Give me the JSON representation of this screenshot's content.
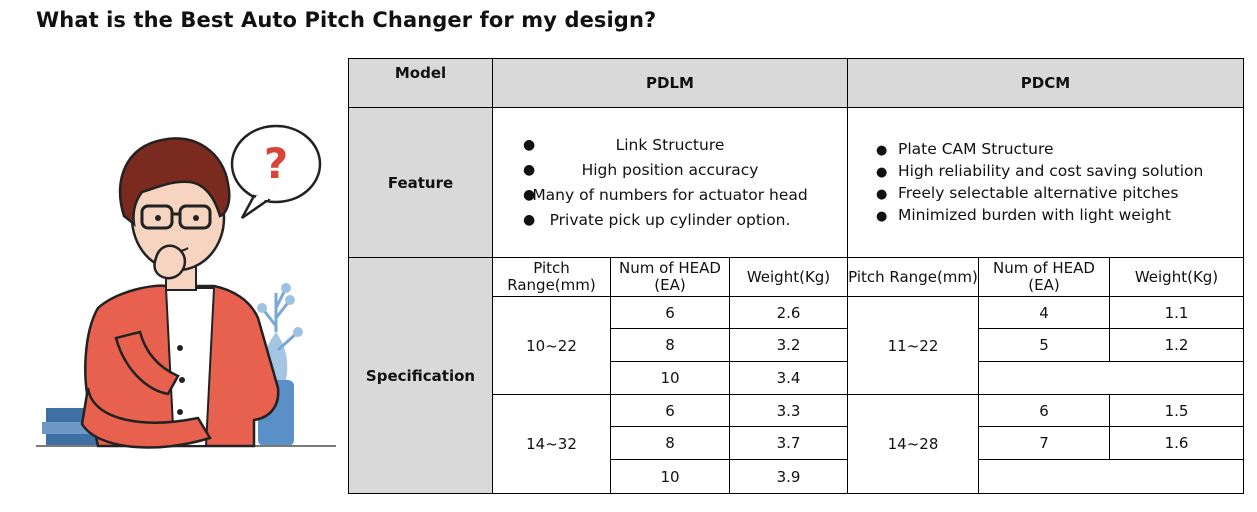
{
  "title": "What is the Best Auto Pitch Changer for my design?",
  "table": {
    "header": {
      "model_label": "Model",
      "model_a": "PDLM",
      "model_b": "PDCM"
    },
    "feature_label": "Feature",
    "spec_label": "Specification",
    "features_a": [
      "Link Structure",
      "High position accuracy",
      "Many of numbers for actuator head",
      "Private pick up cylinder option."
    ],
    "features_b": [
      "Plate CAM Structure",
      "High reliability and cost saving solution",
      "Freely selectable alternative pitches",
      "Minimized burden with light weight"
    ],
    "sub_headers_a": {
      "pitch": "Pitch\nRange(mm)",
      "num": "Num of HEAD\n(EA)",
      "weight": "Weight(Kg)"
    },
    "sub_headers_b": {
      "pitch": "Pitch Range(mm)",
      "num": "Num of HEAD\n(EA)",
      "weight": "Weight(Kg)"
    },
    "spec_a": [
      {
        "range": "10~22",
        "rows": [
          {
            "num": "6",
            "weight": "2.6"
          },
          {
            "num": "8",
            "weight": "3.2"
          },
          {
            "num": "10",
            "weight": "3.4"
          }
        ]
      },
      {
        "range": "14~32",
        "rows": [
          {
            "num": "6",
            "weight": "3.3"
          },
          {
            "num": "8",
            "weight": "3.7"
          },
          {
            "num": "10",
            "weight": "3.9"
          }
        ]
      }
    ],
    "spec_b": [
      {
        "range": "11~22",
        "rows": [
          {
            "num": "4",
            "weight": "1.1"
          },
          {
            "num": "5",
            "weight": "1.2"
          }
        ]
      },
      {
        "range": "14~28",
        "rows": [
          {
            "num": "6",
            "weight": "1.5"
          },
          {
            "num": "7",
            "weight": "1.6"
          }
        ]
      }
    ]
  },
  "illustration": {
    "bubble_symbol": "?"
  },
  "colors": {
    "header_bg": "#d9d9d9",
    "border": "#000000",
    "shirt": "#e8614f",
    "question_mark": "#d9443a"
  }
}
